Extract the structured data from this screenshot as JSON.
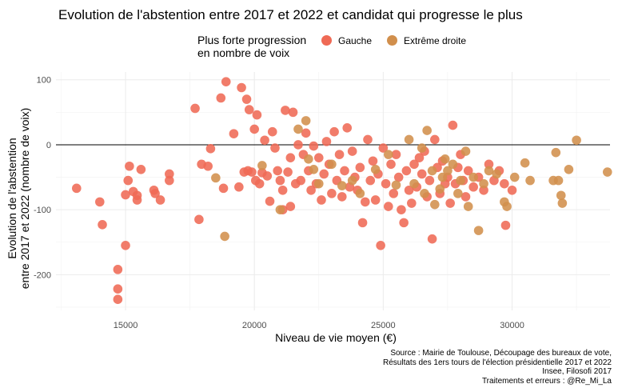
{
  "chart_data": {
    "type": "scatter",
    "title": "Evolution de l'abstention entre 2017 et 2022 et candidat qui progresse le plus",
    "xlabel": "Niveau de vie moyen (€)",
    "ylabel_lines": [
      "Evolution de l'abstention",
      "entre 2017 et 2022 (nombre de voix)"
    ],
    "xlim": [
      12300,
      33800
    ],
    "ylim": [
      -255,
      112
    ],
    "x_ticks": [
      15000,
      20000,
      25000,
      30000
    ],
    "x_tick_labels": [
      "15000",
      "20000",
      "25000",
      "30000"
    ],
    "y_ticks": [
      -200,
      -100,
      0,
      100
    ],
    "y_tick_labels": [
      "-200",
      "-100",
      "0",
      "100"
    ],
    "reference_line_y": 0,
    "grid": true,
    "legend": {
      "title": "Plus forte progression\nen nombre de voix",
      "placement": "top",
      "entries": [
        "Gauche",
        "Extrême droite"
      ]
    },
    "colors": {
      "Gauche": "#ef6a55",
      "Extrême droite": "#d18f4c"
    },
    "series": [
      {
        "name": "Gauche",
        "points": [
          [
            13100,
            -67
          ],
          [
            14000,
            -88
          ],
          [
            14100,
            -123
          ],
          [
            14700,
            -192
          ],
          [
            14700,
            -222
          ],
          [
            14700,
            -238
          ],
          [
            15000,
            -77
          ],
          [
            15000,
            -155
          ],
          [
            15100,
            -55
          ],
          [
            15150,
            -33
          ],
          [
            15300,
            -72
          ],
          [
            15450,
            -85
          ],
          [
            15450,
            -78
          ],
          [
            15600,
            -38
          ],
          [
            16100,
            -70
          ],
          [
            16150,
            -75
          ],
          [
            16350,
            -85
          ],
          [
            16700,
            -45
          ],
          [
            16700,
            -55
          ],
          [
            17700,
            56
          ],
          [
            17850,
            -115
          ],
          [
            17950,
            -30
          ],
          [
            18200,
            -33
          ],
          [
            18300,
            -6
          ],
          [
            18700,
            72
          ],
          [
            18800,
            -67
          ],
          [
            18900,
            97
          ],
          [
            19200,
            17
          ],
          [
            19400,
            -65
          ],
          [
            19500,
            88
          ],
          [
            19600,
            -42
          ],
          [
            19700,
            70
          ],
          [
            19750,
            -40
          ],
          [
            19800,
            54
          ],
          [
            19900,
            -42
          ],
          [
            20000,
            24
          ],
          [
            20050,
            -55
          ],
          [
            20100,
            46
          ],
          [
            20200,
            -60
          ],
          [
            20300,
            -43
          ],
          [
            20400,
            7
          ],
          [
            20500,
            -48
          ],
          [
            20600,
            -87
          ],
          [
            20700,
            20
          ],
          [
            20800,
            -5
          ],
          [
            20900,
            -40
          ],
          [
            21000,
            -55
          ],
          [
            21100,
            -70
          ],
          [
            21100,
            -100
          ],
          [
            21200,
            53
          ],
          [
            21300,
            -42
          ],
          [
            21400,
            -20
          ],
          [
            21400,
            -95
          ],
          [
            21500,
            50
          ],
          [
            21600,
            -60
          ],
          [
            21700,
            0
          ],
          [
            21800,
            -55
          ],
          [
            21900,
            -15
          ],
          [
            22000,
            18
          ],
          [
            22100,
            -40
          ],
          [
            22200,
            -70
          ],
          [
            22300,
            -2
          ],
          [
            22400,
            -60
          ],
          [
            22500,
            -20
          ],
          [
            22600,
            -85
          ],
          [
            22700,
            -45
          ],
          [
            22800,
            5
          ],
          [
            22900,
            -30
          ],
          [
            23000,
            -75
          ],
          [
            23100,
            20
          ],
          [
            23200,
            -55
          ],
          [
            23300,
            -15
          ],
          [
            23400,
            -80
          ],
          [
            23500,
            -40
          ],
          [
            23600,
            26
          ],
          [
            23700,
            -65
          ],
          [
            23800,
            -10
          ],
          [
            23900,
            -50
          ],
          [
            24000,
            -70
          ],
          [
            24100,
            -35
          ],
          [
            24200,
            -120
          ],
          [
            24300,
            -88
          ],
          [
            24400,
            8
          ],
          [
            24500,
            -55
          ],
          [
            24600,
            -25
          ],
          [
            24700,
            -85
          ],
          [
            24800,
            -45
          ],
          [
            24900,
            -155
          ],
          [
            25000,
            -5
          ],
          [
            25100,
            -60
          ],
          [
            25200,
            -95
          ],
          [
            25300,
            -30
          ],
          [
            25400,
            -75
          ],
          [
            25500,
            -15
          ],
          [
            25600,
            -50
          ],
          [
            25700,
            -100
          ],
          [
            25800,
            -120
          ],
          [
            25900,
            -40
          ],
          [
            26000,
            -70
          ],
          [
            26100,
            -90
          ],
          [
            26200,
            -30
          ],
          [
            26300,
            -65
          ],
          [
            26400,
            -20
          ],
          [
            26500,
            -45
          ],
          [
            26600,
            -10
          ],
          [
            26700,
            -80
          ],
          [
            26800,
            -55
          ],
          [
            26900,
            -145
          ],
          [
            27000,
            8
          ],
          [
            27100,
            -35
          ],
          [
            27200,
            -75
          ],
          [
            27300,
            -25
          ],
          [
            27400,
            -60
          ],
          [
            27500,
            -50
          ],
          [
            27600,
            -90
          ],
          [
            27700,
            30
          ],
          [
            27800,
            -60
          ],
          [
            27900,
            -35
          ],
          [
            28000,
            -15
          ],
          [
            28100,
            -55
          ],
          [
            28200,
            -80
          ],
          [
            28300,
            -40
          ],
          [
            28500,
            -65
          ],
          [
            28700,
            -50
          ],
          [
            28900,
            -70
          ],
          [
            29100,
            -30
          ],
          [
            29300,
            -55
          ],
          [
            29500,
            -40
          ],
          [
            29700,
            -60
          ],
          [
            29750,
            -124
          ],
          [
            30000,
            -70
          ]
        ]
      },
      {
        "name": "Extrême droite",
        "points": [
          [
            18500,
            -51
          ],
          [
            18850,
            -141
          ],
          [
            21700,
            24
          ],
          [
            22000,
            37
          ],
          [
            22100,
            -22
          ],
          [
            22300,
            -38
          ],
          [
            22500,
            -60
          ],
          [
            23000,
            -30
          ],
          [
            23800,
            -55
          ],
          [
            24700,
            -38
          ],
          [
            25200,
            -15
          ],
          [
            25500,
            -62
          ],
          [
            26000,
            8
          ],
          [
            26200,
            -60
          ],
          [
            26500,
            -5
          ],
          [
            26600,
            -75
          ],
          [
            26700,
            22
          ],
          [
            26900,
            -40
          ],
          [
            27000,
            -92
          ],
          [
            27200,
            -68
          ],
          [
            27300,
            -50
          ],
          [
            27400,
            -22
          ],
          [
            27500,
            -40
          ],
          [
            27700,
            -30
          ],
          [
            27900,
            -75
          ],
          [
            28000,
            -55
          ],
          [
            28200,
            -10
          ],
          [
            28300,
            -95
          ],
          [
            28500,
            -50
          ],
          [
            28700,
            -132
          ],
          [
            28900,
            -60
          ],
          [
            29100,
            -40
          ],
          [
            29400,
            -45
          ],
          [
            29700,
            -88
          ],
          [
            29800,
            -95
          ],
          [
            30100,
            -50
          ],
          [
            30500,
            -28
          ],
          [
            30700,
            -55
          ],
          [
            31600,
            -55
          ],
          [
            31700,
            -12
          ],
          [
            31800,
            -55
          ],
          [
            31900,
            -78
          ],
          [
            31950,
            -90
          ],
          [
            32200,
            -38
          ],
          [
            32500,
            7
          ],
          [
            33700,
            -42
          ],
          [
            20300,
            -32
          ],
          [
            21000,
            -100
          ],
          [
            23400,
            -63
          ],
          [
            24100,
            -75
          ]
        ]
      }
    ],
    "caption_lines": [
      "Source : Mairie de Toulouse, Découpage des bureaux de vote,",
      "Résultats des 1ers tours de l'élection présidentielle 2017 et 2022",
      "Insee, Filosofi 2017",
      "Traitements et erreurs : @Re_Mi_La"
    ]
  }
}
